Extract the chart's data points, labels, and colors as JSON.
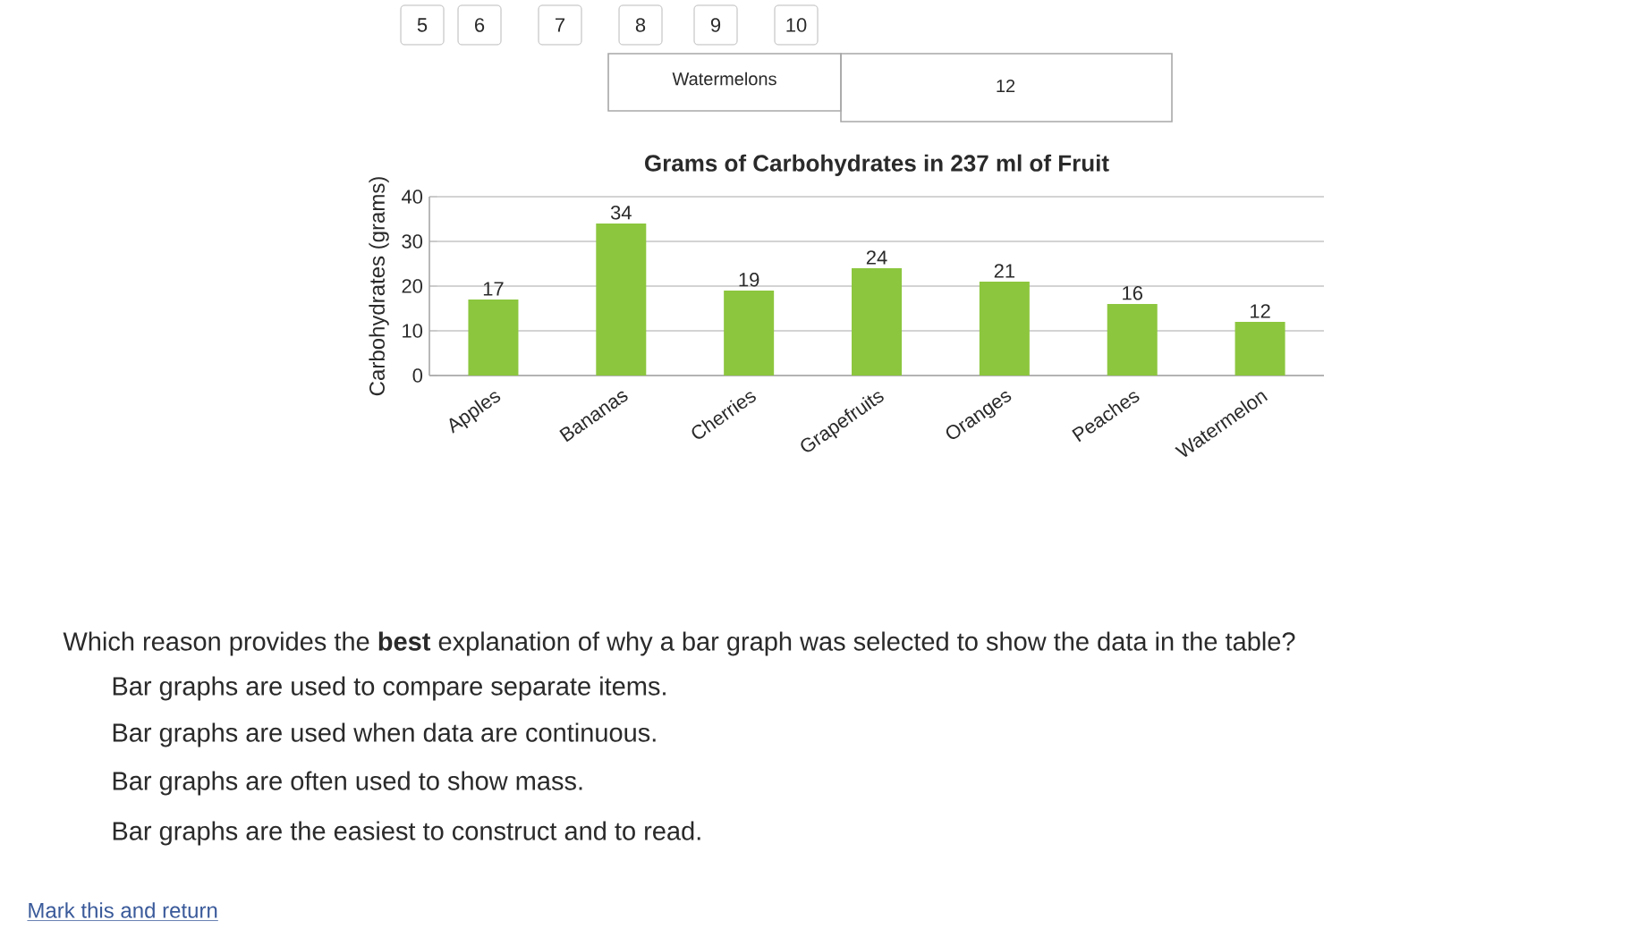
{
  "chart_data": {
    "type": "bar",
    "title": "Grams of Carbohydrates in 237 ml of Fruit",
    "ylabel": "Carbohydrates (grams)",
    "categories": [
      "Apples",
      "Bananas",
      "Cherries",
      "Grapefruits",
      "Oranges",
      "Peaches",
      "Watermelon"
    ],
    "values": [
      17,
      34,
      19,
      24,
      21,
      16,
      12
    ],
    "color": "#8cc63e",
    "ylim": [
      0,
      40
    ],
    "yticks": [
      0,
      10,
      20,
      30,
      40
    ],
    "grid": "y",
    "data_labels": true,
    "annotations": [
      "5",
      "6",
      "7",
      "8",
      "9",
      "10",
      "Watermelons",
      "12",
      "Which reason provides the **best** explanation of why a bar graph was selected to show the data in the table?",
      "Bar graphs are used to compare separate items.",
      "Bar graphs are used when data are continuous.",
      "Bar graphs are often used to show mass.",
      "Bar graphs are the easiest to construct and to read.",
      "Mark this and return"
    ]
  }
}
